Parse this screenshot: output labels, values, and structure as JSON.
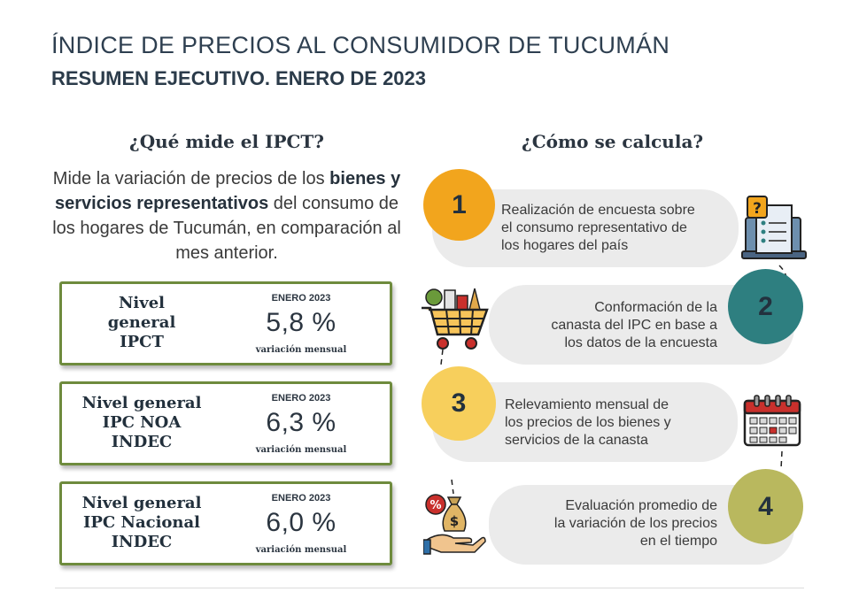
{
  "header": {
    "title": "ÍNDICE DE PRECIOS AL CONSUMIDOR DE TUCUMÁN",
    "subtitle": "RESUMEN EJECUTIVO. ENERO DE 2023"
  },
  "left": {
    "heading": "¿Qué mide el IPCT?",
    "intro": {
      "part1": "Mide la variación de precios de los ",
      "bold": "bienes y servicios representativos",
      "part2": " del consumo de los hogares de Tucumán, en comparación al mes anterior."
    },
    "kpis": [
      {
        "label_lines": [
          "Nivel",
          "general",
          "IPCT"
        ],
        "month": "ENERO 2023",
        "value": "5,8 %",
        "note": "variación mensual"
      },
      {
        "label_lines": [
          "Nivel general",
          "IPC NOA",
          "INDEC"
        ],
        "month": "ENERO 2023",
        "value": "6,3 %",
        "note": "variación mensual"
      },
      {
        "label_lines": [
          "Nivel general",
          "IPC Nacional",
          "INDEC"
        ],
        "month": "ENERO 2023",
        "value": "6,0 %",
        "note": "variación mensual"
      }
    ]
  },
  "right": {
    "heading": "¿Cómo se calcula?",
    "steps": [
      {
        "number": "1",
        "lines": [
          "Realización de encuesta sobre",
          "el consumo representativo de",
          "los hogares del país"
        ],
        "color": "#f2a51d",
        "icon": "survey-laptop-icon"
      },
      {
        "number": "2",
        "lines": [
          "Conformación de la",
          "canasta del IPC en base a",
          "los datos de la encuesta"
        ],
        "color": "#2e7f80",
        "icon": "shopping-cart-icon"
      },
      {
        "number": "3",
        "lines": [
          "Relevamiento mensual de",
          "los precios de los bienes y",
          "servicios de la canasta"
        ],
        "color": "#f7cf5c",
        "icon": "calendar-icon"
      },
      {
        "number": "4",
        "lines": [
          "Evaluación promedio de",
          "la variación de los precios",
          "en el tiempo"
        ],
        "color": "#b9b85e",
        "icon": "money-bag-hand-icon"
      }
    ]
  }
}
